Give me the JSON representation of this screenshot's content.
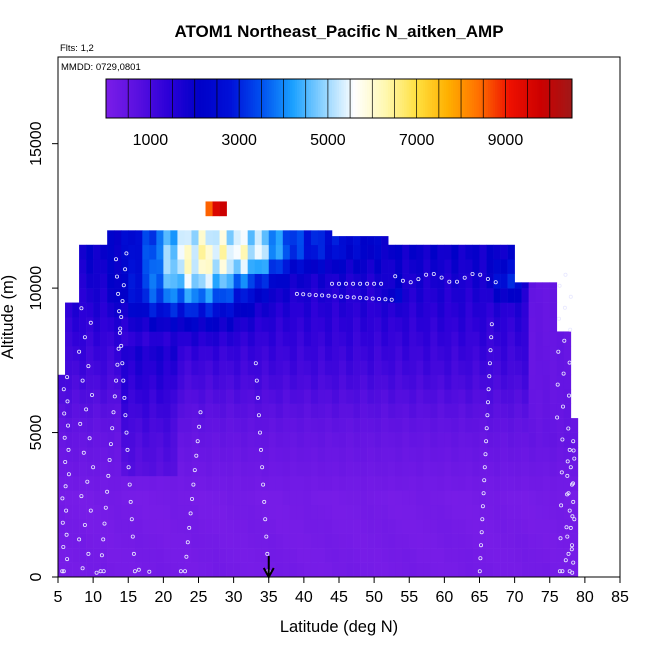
{
  "chart_data": {
    "type": "heatmap",
    "title": "ATOM1 Northeast_Pacific N_aitken_AMP",
    "subtitle_flights": "Flts: 1,2",
    "subtitle_dates": "MMDD: 0729,0801",
    "xlabel": "Latitude (deg N)",
    "ylabel": "Altitude (m)",
    "xlim": [
      5,
      85
    ],
    "ylim": [
      0,
      18000
    ],
    "x_ticks": [
      5,
      10,
      15,
      20,
      25,
      30,
      35,
      40,
      45,
      50,
      55,
      60,
      65,
      70,
      75,
      80,
      85
    ],
    "y_ticks": [
      0,
      5000,
      10000,
      15000
    ],
    "colorbar": {
      "range": [
        0,
        10500
      ],
      "ticks": [
        1000,
        3000,
        5000,
        7000,
        9000
      ],
      "placement": "top inset",
      "colors": [
        "#7b1ee8",
        "#5a10e0",
        "#2c00d8",
        "#0000c8",
        "#0010d8",
        "#0050f0",
        "#1aa0ff",
        "#8fd3ff",
        "#ffffff",
        "#fff8b0",
        "#ffe040",
        "#ffb000",
        "#ff7000",
        "#ee1000",
        "#cc0000",
        "#a01818"
      ]
    },
    "marker": {
      "label": "arrow",
      "x": 35
    },
    "lat_columns": [
      5.5,
      78.5
    ],
    "alt_edges": [
      0,
      500,
      1000,
      1500,
      2000,
      2500,
      3000,
      3500,
      4000,
      4500,
      5000,
      5500,
      6000,
      6500,
      7000,
      7500,
      8000,
      8500,
      9000,
      9500,
      10000,
      10500,
      11000,
      11500,
      12000,
      12500,
      13000
    ],
    "grid": false,
    "legend": "none"
  }
}
